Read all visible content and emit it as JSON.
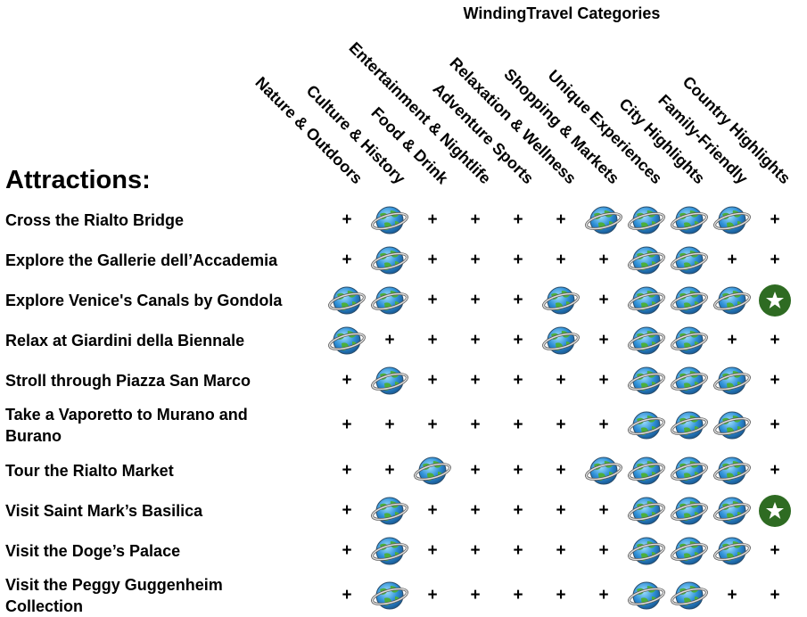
{
  "header": {
    "title": "WindingTravel Categories",
    "row_heading": "Attractions:"
  },
  "table": {
    "columns": [
      "Nature & Outdoors",
      "Culture & History",
      "Food & Drink",
      "Entertainment & Nightlife",
      "Adventure Sports",
      "Relaxation & Wellness",
      "Shopping & Markets",
      "Unique Experiences",
      "City Highlights",
      "Family-Friendly",
      "Country Highlights"
    ],
    "rows": [
      {
        "name": "Cross the Rialto Bridge",
        "cells": [
          "+",
          "globe",
          "+",
          "+",
          "+",
          "+",
          "globe",
          "globe",
          "globe",
          "globe",
          "+"
        ]
      },
      {
        "name": "Explore the Gallerie dell’Accademia",
        "cells": [
          "+",
          "globe",
          "+",
          "+",
          "+",
          "+",
          "+",
          "globe",
          "globe",
          "+",
          "+"
        ]
      },
      {
        "name": "Explore Venice's Canals by Gondola",
        "cells": [
          "globe",
          "globe",
          "+",
          "+",
          "+",
          "globe",
          "+",
          "globe",
          "globe",
          "globe",
          "star"
        ]
      },
      {
        "name": "Relax at Giardini della Biennale",
        "cells": [
          "globe",
          "+",
          "+",
          "+",
          "+",
          "globe",
          "+",
          "globe",
          "globe",
          "+",
          "+"
        ]
      },
      {
        "name": "Stroll through Piazza San Marco",
        "cells": [
          "+",
          "globe",
          "+",
          "+",
          "+",
          "+",
          "+",
          "globe",
          "globe",
          "globe",
          "+"
        ]
      },
      {
        "name": "Take a Vaporetto to Murano and Burano",
        "cells": [
          "+",
          "+",
          "+",
          "+",
          "+",
          "+",
          "+",
          "globe",
          "globe",
          "globe",
          "+"
        ]
      },
      {
        "name": "Tour the Rialto Market",
        "cells": [
          "+",
          "+",
          "globe",
          "+",
          "+",
          "+",
          "globe",
          "globe",
          "globe",
          "globe",
          "+"
        ]
      },
      {
        "name": "Visit Saint Mark’s Basilica",
        "cells": [
          "+",
          "globe",
          "+",
          "+",
          "+",
          "+",
          "+",
          "globe",
          "globe",
          "globe",
          "star"
        ]
      },
      {
        "name": "Visit the Doge’s Palace",
        "cells": [
          "+",
          "globe",
          "+",
          "+",
          "+",
          "+",
          "+",
          "globe",
          "globe",
          "globe",
          "+"
        ]
      },
      {
        "name": "Visit the Peggy Guggenheim Collection",
        "cells": [
          "+",
          "globe",
          "+",
          "+",
          "+",
          "+",
          "+",
          "globe",
          "globe",
          "+",
          "+"
        ]
      }
    ]
  }
}
